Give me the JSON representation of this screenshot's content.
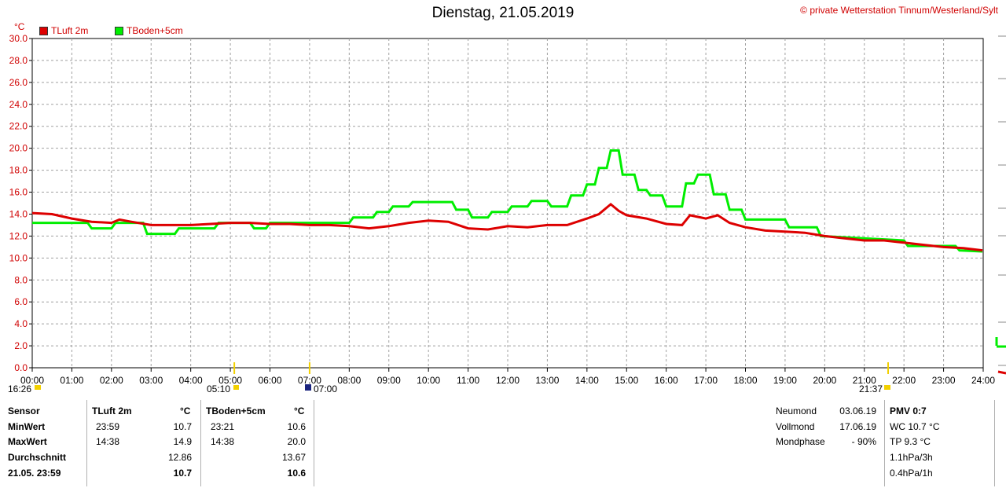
{
  "title": "Dienstag, 21.05.2019",
  "copyright": "© private Wetterstation Tinnum/Westerland/Sylt",
  "unit": "°C",
  "legend": [
    {
      "label": "TLuft 2m",
      "color": "#dd0000"
    },
    {
      "label": "TBoden+5cm",
      "color": "#00ee00"
    }
  ],
  "events": {
    "sunrise": "16:26",
    "moonrise": "05:10",
    "dawn": "07:00",
    "sunset": "21:37"
  },
  "table": {
    "headers": [
      "Sensor",
      "TLuft 2m",
      "°C",
      "TBoden+5cm",
      "°C"
    ],
    "rows": [
      {
        "label": "MinWert",
        "t1": "23:59",
        "v1": "10.7",
        "t2": "23:21",
        "v2": "10.6"
      },
      {
        "label": "MaxWert",
        "t1": "14:38",
        "v1": "14.9",
        "t2": "14:38",
        "v2": "20.0"
      },
      {
        "label": "Durchschnitt",
        "t1": "",
        "v1": "12.86",
        "t2": "",
        "v2": "13.67"
      },
      {
        "label": "21.05. 23:59",
        "t1": "",
        "v1": "10.7",
        "t2": "",
        "v2": "10.6"
      }
    ]
  },
  "moon": [
    {
      "label": "Neumond",
      "value": "03.06.19"
    },
    {
      "label": "Vollmond",
      "value": "17.06.19"
    },
    {
      "label": "Mondphase",
      "value": "- 90%"
    }
  ],
  "pmv": {
    "title": "PMV 0:7",
    "lines": [
      "WC 10.7 °C",
      "TP 9.3 °C",
      "1.1hPa/3h",
      "0.4hPa/1h"
    ]
  },
  "chart_data": {
    "type": "line",
    "title": "Dienstag, 21.05.2019",
    "ylabel": "°C",
    "xlabel": "",
    "xlim": [
      0,
      24
    ],
    "ylim": [
      0,
      30
    ],
    "grid": true,
    "legend_position": "top-left",
    "x_ticks": [
      "00:00",
      "01:00",
      "02:00",
      "03:00",
      "04:00",
      "05:00",
      "06:00",
      "07:00",
      "08:00",
      "09:00",
      "10:00",
      "11:00",
      "12:00",
      "13:00",
      "14:00",
      "15:00",
      "16:00",
      "17:00",
      "18:00",
      "19:00",
      "20:00",
      "21:00",
      "22:00",
      "23:00",
      "24:00"
    ],
    "y_ticks": [
      "0.0",
      "2.0",
      "4.0",
      "6.0",
      "8.0",
      "10.0",
      "12.0",
      "14.0",
      "16.0",
      "18.0",
      "20.0",
      "22.0",
      "24.0",
      "26.0",
      "28.0",
      "30.0"
    ],
    "series": [
      {
        "name": "TLuft 2m",
        "color": "#dd0000",
        "x": [
          0,
          0.5,
          1,
          1.5,
          2,
          2.2,
          2.5,
          3,
          3.5,
          4,
          4.5,
          5,
          5.5,
          6,
          6.5,
          7,
          7.5,
          8,
          8.5,
          9,
          9.5,
          10,
          10.5,
          11,
          11.5,
          12,
          12.5,
          13,
          13.5,
          14,
          14.3,
          14.6,
          14.8,
          15,
          15.5,
          16,
          16.4,
          16.6,
          17,
          17.3,
          17.6,
          18,
          18.5,
          19,
          19.5,
          20,
          20.5,
          21,
          21.5,
          22,
          22.5,
          23,
          23.5,
          23.98
        ],
        "y": [
          14.1,
          14.0,
          13.6,
          13.3,
          13.2,
          13.5,
          13.3,
          13.0,
          13.0,
          13.0,
          13.1,
          13.2,
          13.2,
          13.1,
          13.1,
          13.0,
          13.0,
          12.9,
          12.7,
          12.9,
          13.2,
          13.4,
          13.3,
          12.7,
          12.6,
          12.9,
          12.8,
          13.0,
          13.0,
          13.6,
          14.0,
          14.9,
          14.3,
          13.9,
          13.6,
          13.1,
          13.0,
          13.9,
          13.6,
          13.9,
          13.2,
          12.8,
          12.5,
          12.4,
          12.3,
          12.0,
          11.8,
          11.6,
          11.6,
          11.4,
          11.2,
          11.0,
          10.9,
          10.7
        ]
      },
      {
        "name": "TBoden+5cm",
        "color": "#00ee00",
        "x": [
          0,
          1.4,
          1.5,
          2.0,
          2.1,
          2.8,
          2.9,
          3.6,
          3.7,
          4.6,
          4.7,
          5.5,
          5.6,
          5.9,
          6.0,
          8.0,
          8.1,
          8.6,
          8.7,
          9.0,
          9.1,
          9.5,
          9.6,
          10.6,
          10.7,
          11.0,
          11.1,
          11.5,
          11.6,
          12.0,
          12.1,
          12.5,
          12.6,
          13.0,
          13.1,
          13.5,
          13.6,
          13.9,
          14.0,
          14.2,
          14.3,
          14.5,
          14.6,
          14.8,
          14.9,
          15.2,
          15.3,
          15.5,
          15.6,
          15.9,
          16.0,
          16.4,
          16.5,
          16.7,
          16.8,
          17.1,
          17.2,
          17.5,
          17.6,
          17.9,
          18.0,
          19.0,
          19.1,
          19.8,
          19.9,
          22.0,
          22.1,
          23.3,
          23.4,
          23.98
        ],
        "y": [
          13.2,
          13.2,
          12.7,
          12.7,
          13.2,
          13.2,
          12.2,
          12.2,
          12.7,
          12.7,
          13.2,
          13.2,
          12.7,
          12.7,
          13.2,
          13.2,
          13.7,
          13.7,
          14.2,
          14.2,
          14.7,
          14.7,
          15.1,
          15.1,
          14.4,
          14.4,
          13.7,
          13.7,
          14.2,
          14.2,
          14.7,
          14.7,
          15.2,
          15.2,
          14.7,
          14.7,
          15.7,
          15.7,
          16.7,
          16.7,
          18.2,
          18.2,
          19.8,
          19.8,
          17.6,
          17.6,
          16.2,
          16.2,
          15.7,
          15.7,
          14.7,
          14.7,
          16.8,
          16.8,
          17.6,
          17.6,
          15.8,
          15.8,
          14.4,
          14.4,
          13.5,
          13.5,
          12.8,
          12.8,
          12.0,
          11.6,
          11.1,
          11.1,
          10.7,
          10.6
        ]
      }
    ]
  }
}
